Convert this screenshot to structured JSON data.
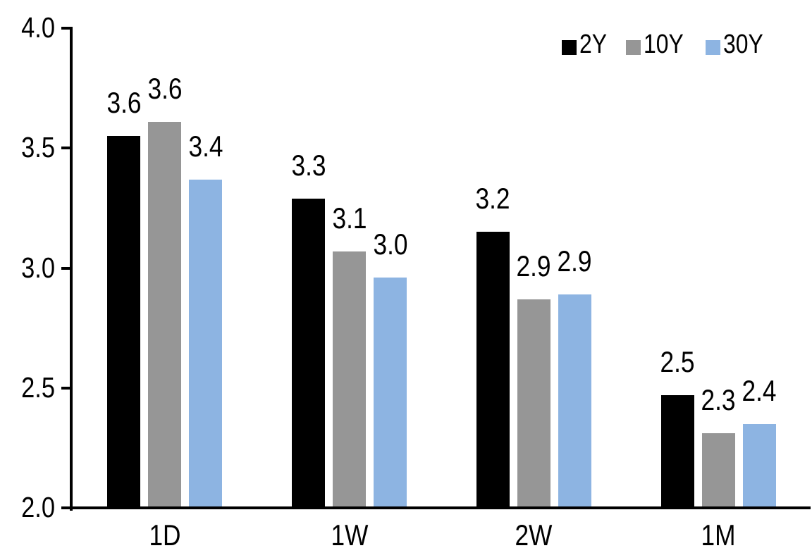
{
  "chart_data": {
    "type": "bar",
    "title": "",
    "xlabel": "",
    "ylabel": "",
    "categories": [
      "1D",
      "1W",
      "2W",
      "1M"
    ],
    "series": [
      {
        "name": "2Y",
        "color": "#000000",
        "values": [
          3.55,
          3.29,
          3.15,
          2.47
        ],
        "value_labels": [
          "3.6",
          "3.3",
          "3.2",
          "2.5"
        ]
      },
      {
        "name": "10Y",
        "color": "#969696",
        "values": [
          3.61,
          3.07,
          2.87,
          2.31
        ],
        "value_labels": [
          "3.6",
          "3.1",
          "2.9",
          "2.3"
        ]
      },
      {
        "name": "30Y",
        "color": "#8DB4E2",
        "values": [
          3.37,
          2.96,
          2.89,
          2.35
        ],
        "value_labels": [
          "3.4",
          "3.0",
          "2.9",
          "2.4"
        ]
      }
    ],
    "ylim": [
      2.0,
      4.0
    ],
    "yticks": [
      {
        "value": 4.0,
        "label": "4.0"
      },
      {
        "value": 3.5,
        "label": "3.5"
      },
      {
        "value": 3.0,
        "label": "3.0"
      },
      {
        "value": 2.5,
        "label": "2.5"
      },
      {
        "value": 2.0,
        "label": "2.0"
      }
    ],
    "grid": false,
    "legend_position": "top-right",
    "axis_color": "#000000",
    "background_color": "#FFFFFF",
    "text_color": "#000000"
  }
}
